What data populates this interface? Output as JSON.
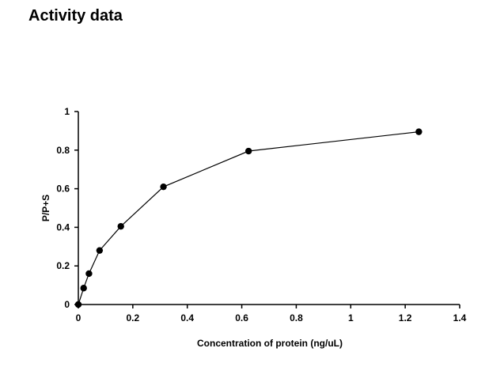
{
  "page": {
    "title": "Activity data"
  },
  "chart_data": {
    "type": "line",
    "title": "",
    "xlabel": "Concentration of protein (ng/uL)",
    "ylabel": "P/P+S",
    "xlim": [
      0,
      1.4
    ],
    "ylim": [
      0,
      1
    ],
    "x_ticks": [
      0,
      0.2,
      0.4,
      0.6,
      0.8,
      1,
      1.2,
      1.4
    ],
    "x_tick_labels": [
      "0",
      "0.2",
      "0.4",
      "0.6",
      "0.8",
      "1",
      "1.2",
      "1.4"
    ],
    "y_ticks": [
      0,
      0.2,
      0.4,
      0.6,
      0.8,
      1
    ],
    "y_tick_labels": [
      "0",
      "0.2",
      "0.4",
      "0.6",
      "0.8",
      "1"
    ],
    "grid": false,
    "legend": "none",
    "series": [
      {
        "x": [
          0,
          0.0195,
          0.039,
          0.078,
          0.156,
          0.3125,
          0.625,
          1.25
        ],
        "y": [
          0,
          0.085,
          0.16,
          0.28,
          0.405,
          0.61,
          0.795,
          0.895
        ],
        "color": "#000000",
        "marker": "circle"
      }
    ]
  }
}
